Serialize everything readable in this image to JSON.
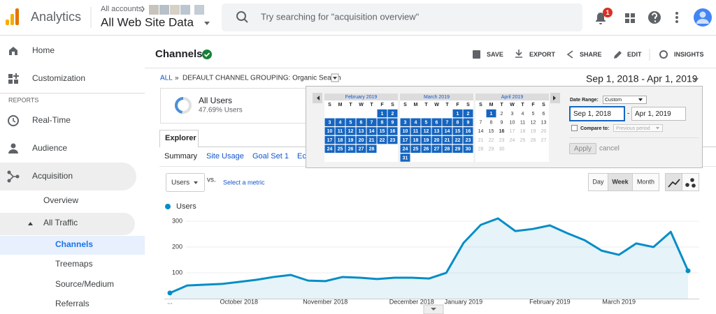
{
  "header": {
    "product": "Analytics",
    "account_path": "All accounts",
    "view": "All Web Site Data",
    "search_placeholder": "Try searching for \"acquisition overview\"",
    "notifications": 1
  },
  "sidebar": {
    "top": [
      "Home",
      "Customization"
    ],
    "section": "REPORTS",
    "reports": [
      "Real-Time",
      "Audience",
      "Acquisition"
    ],
    "acquisition": [
      "Overview",
      "All Traffic"
    ],
    "all_traffic": [
      "Channels",
      "Treemaps",
      "Source/Medium",
      "Referrals"
    ]
  },
  "page": {
    "title": "Channels",
    "actions": [
      "SAVE",
      "EXPORT",
      "SHARE",
      "EDIT",
      "INSIGHTS"
    ],
    "breadcrumb": {
      "root": "ALL",
      "separator": "»",
      "current": "DEFAULT CHANNEL GROUPING: Organic Search"
    },
    "date_range": "Sep 1, 2018 - Apr 1, 2019"
  },
  "segment": {
    "name": "All Users",
    "share": {
      "value": 47.69,
      "label": "47.69% Users"
    }
  },
  "tabs": {
    "main": "Explorer",
    "sub": [
      "Summary",
      "Site Usage",
      "Goal Set 1",
      "Ec"
    ]
  },
  "controls": {
    "metric": "Users",
    "vs": "vs.",
    "select_metric": "Select a metric",
    "periods": [
      "Day",
      "Week",
      "Month"
    ]
  },
  "date_picker": {
    "weekdays": [
      "S",
      "M",
      "T",
      "W",
      "T",
      "F",
      "S"
    ],
    "months": [
      {
        "name": "February 2019",
        "selected_through": 28,
        "weeks": [
          [
            null,
            null,
            null,
            null,
            null,
            1,
            2
          ],
          [
            3,
            4,
            5,
            6,
            7,
            8,
            9
          ],
          [
            10,
            11,
            12,
            13,
            14,
            15,
            16
          ],
          [
            17,
            18,
            19,
            20,
            21,
            22,
            23
          ],
          [
            24,
            25,
            26,
            27,
            28,
            null,
            null
          ]
        ]
      },
      {
        "name": "March 2019",
        "selected_through": 31,
        "weeks": [
          [
            null,
            null,
            null,
            null,
            null,
            1,
            2
          ],
          [
            3,
            4,
            5,
            6,
            7,
            8,
            9
          ],
          [
            10,
            11,
            12,
            13,
            14,
            15,
            16
          ],
          [
            17,
            18,
            19,
            20,
            21,
            22,
            23
          ],
          [
            24,
            25,
            26,
            27,
            28,
            29,
            30
          ],
          [
            31,
            null,
            null,
            null,
            null,
            null,
            null
          ]
        ]
      },
      {
        "name": "April 2019",
        "selected_through": 1,
        "today": 16,
        "weeks": [
          [
            null,
            1,
            2,
            3,
            4,
            5,
            6
          ],
          [
            7,
            8,
            9,
            10,
            11,
            12,
            13
          ],
          [
            14,
            15,
            16,
            17,
            18,
            19,
            20
          ],
          [
            21,
            22,
            23,
            24,
            25,
            26,
            27
          ],
          [
            28,
            29,
            30,
            null,
            null,
            null,
            null
          ]
        ]
      }
    ],
    "range_label": "Date Range:",
    "range_type": "Custom",
    "start": "Sep 1, 2018",
    "dash": "-",
    "end": "Apr 1, 2019",
    "compare_label": "Compare to:",
    "compare_option": "Previous period",
    "apply": "Apply",
    "cancel": "cancel"
  },
  "chart_data": {
    "type": "line",
    "categories": [
      "...",
      null,
      null,
      null,
      "October 2018",
      null,
      null,
      null,
      null,
      "November 2018",
      null,
      null,
      null,
      null,
      "December 2018",
      null,
      null,
      "January 2019",
      null,
      null,
      null,
      null,
      "February 2019",
      null,
      null,
      null,
      "March 2019",
      null,
      null,
      null,
      null
    ],
    "series": [
      {
        "name": "Users",
        "color": "#058dc7",
        "values": [
          22,
          51,
          54,
          57,
          65,
          73,
          84,
          92,
          70,
          68,
          84,
          81,
          76,
          81,
          81,
          78,
          100,
          216,
          286,
          311,
          262,
          270,
          284,
          254,
          227,
          186,
          170,
          214,
          200,
          259,
          108
        ]
      }
    ],
    "ylim": [
      0,
      330
    ],
    "yticks": [
      100,
      200,
      300
    ],
    "grid": true,
    "area": true
  }
}
